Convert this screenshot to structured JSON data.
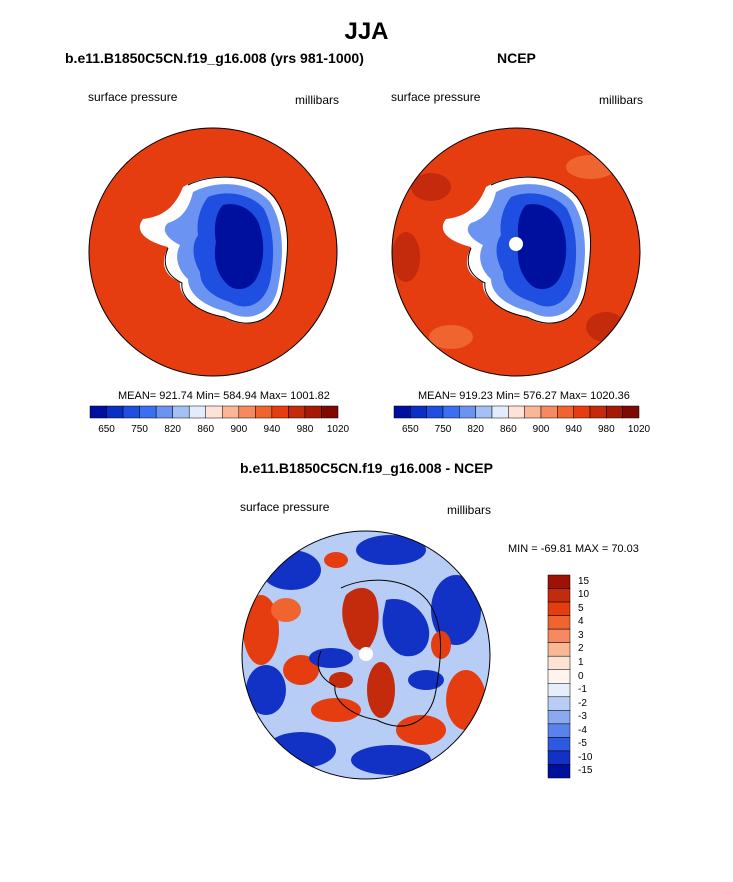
{
  "title": "JJA",
  "panels": {
    "model": {
      "title": "b.e11.B1850C5CN.f19_g16.008 (yrs 981-1000)",
      "left_label": "surface pressure",
      "right_label": "millibars",
      "stats": "MEAN= 921.74  Min= 584.94  Max= 1001.82"
    },
    "obs": {
      "title": "NCEP",
      "left_label": "surface pressure",
      "right_label": "millibars",
      "stats": "MEAN= 919.23  Min= 576.27  Max= 1020.36"
    },
    "diff": {
      "title": "b.e11.B1850C5CN.f19_g16.008 - NCEP",
      "left_label": "surface pressure",
      "right_label": "millibars",
      "stats": "MIN = -69.81 MAX =  70.03"
    }
  },
  "colorbar_horizontal": {
    "labels": [
      "650",
      "750",
      "820",
      "860",
      "900",
      "940",
      "980",
      "1020"
    ],
    "colors": [
      "#00109e",
      "#0a2fc4",
      "#1e4fe0",
      "#3a6ff0",
      "#6a93f2",
      "#a4c0f5",
      "#e2ecfa",
      "#fde3d6",
      "#f9b796",
      "#f58a62",
      "#f0642f",
      "#e53d10",
      "#c42a0c",
      "#a51a06",
      "#7f0a02"
    ]
  },
  "colorbar_vertical": {
    "labels": [
      "15",
      "10",
      "5",
      "4",
      "3",
      "2",
      "1",
      "0",
      "-1",
      "-2",
      "-3",
      "-4",
      "-5",
      "-10",
      "-15"
    ],
    "colors": [
      "#a01004",
      "#c42a0c",
      "#e53d10",
      "#f0642f",
      "#f58a62",
      "#f9b796",
      "#fde3d6",
      "#fff4ee",
      "#e6eefb",
      "#b8cdf6",
      "#8aa9f0",
      "#5b82ea",
      "#2e59e0",
      "#1232c6",
      "#00109e"
    ]
  }
}
